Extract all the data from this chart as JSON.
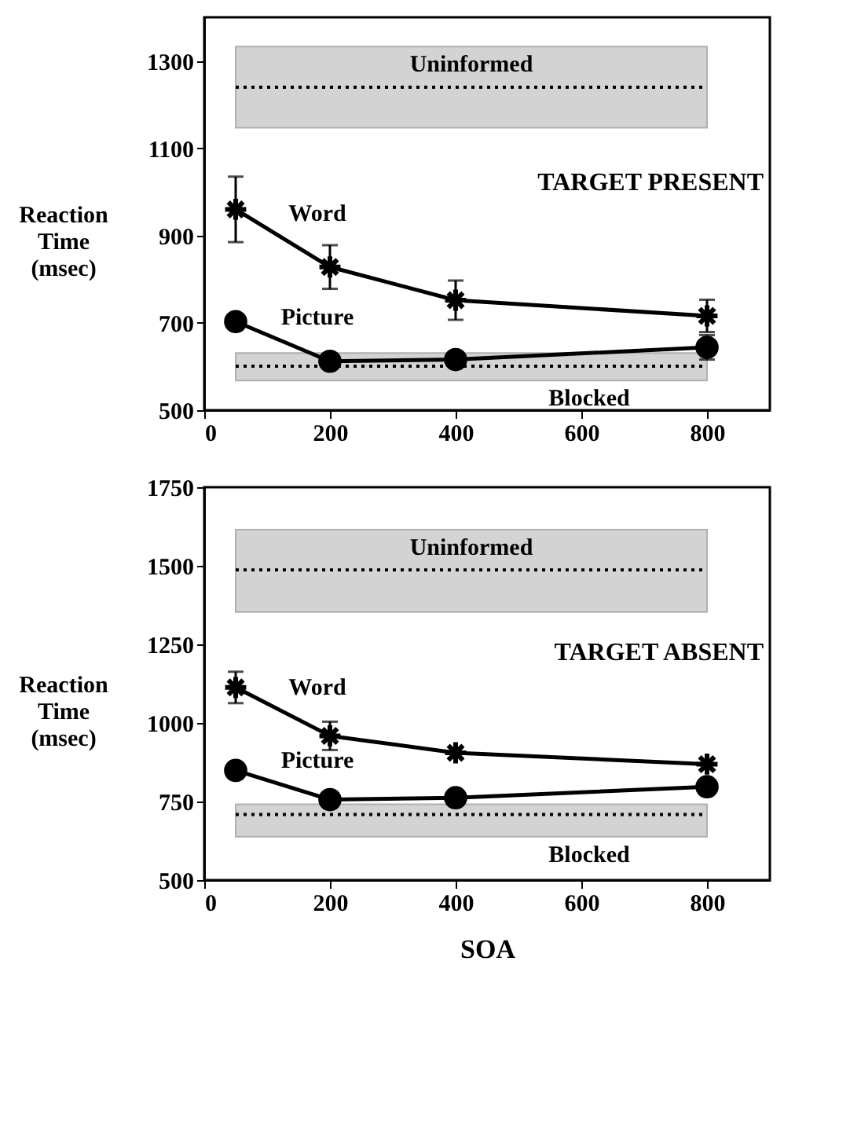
{
  "chart_data": [
    {
      "type": "line",
      "xlabel": null,
      "ylabel": "Reaction Time (msec)",
      "x": [
        50,
        200,
        400,
        800
      ],
      "xlim": [
        0,
        900
      ],
      "xticks": [
        0,
        200,
        400,
        600,
        800
      ],
      "ylim": [
        500,
        1400
      ],
      "yticks": [
        500,
        700,
        900,
        1100,
        1300
      ],
      "grid": false,
      "annotations": [
        "TARGET PRESENT"
      ],
      "series": [
        {
          "name": "Word",
          "color": "#000000",
          "marker": "cross",
          "values": [
            960,
            828,
            752,
            716
          ],
          "errors": [
            75,
            50,
            45,
            37
          ]
        },
        {
          "name": "Picture",
          "color": "#000000",
          "marker": "circle",
          "values": [
            703,
            612,
            616,
            644
          ],
          "errors": [
            null,
            null,
            null,
            28
          ]
        }
      ],
      "bands": [
        {
          "axis": "y",
          "from": 1147,
          "to": 1333,
          "label": "Uninformed",
          "color": "#d3d3d3"
        },
        {
          "axis": "y",
          "from": 568,
          "to": 631,
          "label": "Blocked",
          "color": "#d3d3d3"
        }
      ],
      "ref_lines": [
        {
          "axis": "y",
          "value": 1240,
          "label": null,
          "line_style": "dotted",
          "color": "#000000"
        },
        {
          "axis": "y",
          "value": 601,
          "label": null,
          "line_style": "dotted",
          "color": "#000000"
        }
      ]
    },
    {
      "type": "line",
      "xlabel": "SOA",
      "ylabel": "Reaction Time (msec)",
      "x": [
        50,
        200,
        400,
        800
      ],
      "xlim": [
        0,
        900
      ],
      "xticks": [
        0,
        200,
        400,
        600,
        800
      ],
      "ylim": [
        500,
        1750
      ],
      "yticks": [
        500,
        750,
        1000,
        1250,
        1500,
        1750
      ],
      "grid": false,
      "annotations": [
        "TARGET ABSENT"
      ],
      "series": [
        {
          "name": "Word",
          "color": "#000000",
          "marker": "cross",
          "values": [
            1113,
            959,
            905,
            869
          ],
          "errors": [
            50,
            45,
            null,
            null
          ]
        },
        {
          "name": "Picture",
          "color": "#000000",
          "marker": "circle",
          "values": [
            849,
            756,
            762,
            797
          ],
          "errors": [
            null,
            null,
            null,
            null
          ]
        }
      ],
      "bands": [
        {
          "axis": "y",
          "from": 1353,
          "to": 1615,
          "label": "Uninformed",
          "color": "#d3d3d3"
        },
        {
          "axis": "y",
          "from": 638,
          "to": 741,
          "label": "Blocked",
          "color": "#d3d3d3"
        }
      ],
      "ref_lines": [
        {
          "axis": "y",
          "value": 1487,
          "label": null,
          "line_style": "dotted",
          "color": "#000000"
        },
        {
          "axis": "y",
          "value": 709,
          "label": null,
          "line_style": "dotted",
          "color": "#000000"
        }
      ]
    }
  ]
}
